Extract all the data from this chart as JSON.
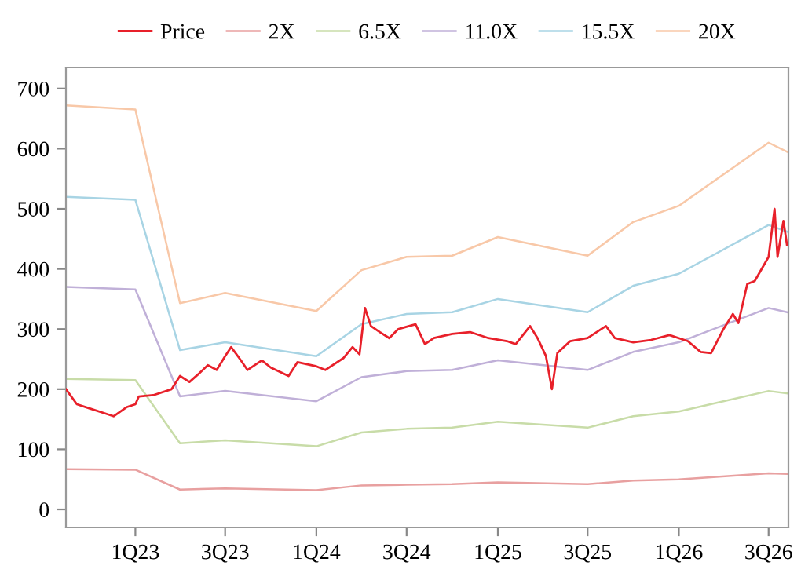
{
  "chart_data": {
    "type": "line",
    "legend": "top",
    "grid": false,
    "marker": "none",
    "line_style": "solid",
    "xlim": [
      "2022-08-14",
      "2026-08-10"
    ],
    "ylim": [
      -30,
      735
    ],
    "xticks": [
      {
        "value": "2023-01-01",
        "label": "1Q23"
      },
      {
        "value": "2023-07-01",
        "label": "3Q23"
      },
      {
        "value": "2024-01-01",
        "label": "1Q24"
      },
      {
        "value": "2024-07-01",
        "label": "3Q24"
      },
      {
        "value": "2025-01-01",
        "label": "1Q25"
      },
      {
        "value": "2025-07-01",
        "label": "3Q25"
      },
      {
        "value": "2026-01-01",
        "label": "1Q26"
      },
      {
        "value": "2026-07-01",
        "label": "3Q26"
      }
    ],
    "yticks": [
      0,
      100,
      200,
      300,
      400,
      500,
      600,
      700
    ],
    "series": [
      {
        "name": "Price",
        "color": "#e8202a",
        "x": [
          "2022-08-14",
          "2022-09-05",
          "2022-10-01",
          "2022-10-31",
          "2022-11-18",
          "2022-12-14",
          "2023-01-01",
          "2023-01-08",
          "2023-02-06",
          "2023-03-15",
          "2023-04-01",
          "2023-04-20",
          "2023-05-08",
          "2023-05-27",
          "2023-06-14",
          "2023-07-01",
          "2023-07-13",
          "2023-07-31",
          "2023-08-15",
          "2023-09-13",
          "2023-10-01",
          "2023-11-06",
          "2023-11-24",
          "2024-01-01",
          "2024-01-19",
          "2024-02-25",
          "2024-03-14",
          "2024-03-28",
          "2024-04-08",
          "2024-04-20",
          "2024-05-08",
          "2024-05-27",
          "2024-06-14",
          "2024-07-19",
          "2024-08-07",
          "2024-08-25",
          "2024-10-01",
          "2024-11-06",
          "2024-12-13",
          "2025-01-19",
          "2025-02-06",
          "2025-03-07",
          "2025-03-22",
          "2025-04-08",
          "2025-04-20",
          "2025-05-01",
          "2025-05-27",
          "2025-07-01",
          "2025-08-07",
          "2025-08-25",
          "2025-10-01",
          "2025-11-06",
          "2025-12-13",
          "2026-01-19",
          "2026-02-14",
          "2026-03-07",
          "2026-04-01",
          "2026-04-20",
          "2026-05-01",
          "2026-05-19",
          "2026-06-03",
          "2026-07-01",
          "2026-07-13",
          "2026-07-19",
          "2026-07-31",
          "2026-08-07"
        ],
        "values": [
          200,
          175,
          168,
          160,
          155,
          170,
          175,
          188,
          190,
          200,
          222,
          212,
          225,
          240,
          232,
          255,
          270,
          250,
          232,
          248,
          236,
          222,
          245,
          238,
          232,
          252,
          270,
          258,
          335,
          305,
          295,
          285,
          300,
          308,
          275,
          285,
          292,
          295,
          285,
          280,
          275,
          305,
          285,
          255,
          200,
          260,
          280,
          285,
          305,
          285,
          278,
          282,
          290,
          280,
          262,
          260,
          300,
          325,
          310,
          375,
          380,
          420,
          500,
          420,
          480,
          440
        ]
      },
      {
        "name": "2X",
        "color": "#e8a0a0",
        "x": [
          "2022-08-14",
          "2023-01-01",
          "2023-04-01",
          "2023-07-01",
          "2024-01-01",
          "2024-04-01",
          "2024-07-01",
          "2024-10-01",
          "2025-01-01",
          "2025-07-01",
          "2025-10-01",
          "2026-01-01",
          "2026-07-01",
          "2026-08-07"
        ],
        "values": [
          67,
          66,
          33,
          35,
          32,
          40,
          41,
          42,
          45,
          42,
          48,
          50,
          60,
          59
        ]
      },
      {
        "name": "6.5X",
        "color": "#c8dca8",
        "x": [
          "2022-08-14",
          "2023-01-01",
          "2023-04-01",
          "2023-07-01",
          "2024-01-01",
          "2024-04-01",
          "2024-07-01",
          "2024-10-01",
          "2025-01-01",
          "2025-07-01",
          "2025-10-01",
          "2026-01-01",
          "2026-07-01",
          "2026-08-07"
        ],
        "values": [
          217,
          215,
          110,
          115,
          105,
          128,
          134,
          136,
          146,
          136,
          155,
          163,
          197,
          193
        ]
      },
      {
        "name": "11.0X",
        "color": "#c0b0d8",
        "x": [
          "2022-08-14",
          "2023-01-01",
          "2023-04-01",
          "2023-07-01",
          "2024-01-01",
          "2024-04-01",
          "2024-07-01",
          "2024-10-01",
          "2025-01-01",
          "2025-07-01",
          "2025-10-01",
          "2026-01-01",
          "2026-07-01",
          "2026-08-07"
        ],
        "values": [
          370,
          366,
          188,
          197,
          180,
          220,
          230,
          232,
          248,
          232,
          262,
          278,
          335,
          328
        ]
      },
      {
        "name": "15.5X",
        "color": "#a8d4e4",
        "x": [
          "2022-08-14",
          "2023-01-01",
          "2023-04-01",
          "2023-07-01",
          "2024-01-01",
          "2024-04-01",
          "2024-07-01",
          "2024-10-01",
          "2025-01-01",
          "2025-07-01",
          "2025-10-01",
          "2026-01-01",
          "2026-07-01",
          "2026-08-07"
        ],
        "values": [
          520,
          515,
          265,
          278,
          255,
          308,
          325,
          328,
          350,
          328,
          372,
          392,
          473,
          462
        ]
      },
      {
        "name": "20X",
        "color": "#f8c8a8",
        "x": [
          "2022-08-14",
          "2023-01-01",
          "2023-04-01",
          "2023-07-01",
          "2024-01-01",
          "2024-04-01",
          "2024-07-01",
          "2024-10-01",
          "2025-01-01",
          "2025-07-01",
          "2025-10-01",
          "2026-01-01",
          "2026-07-01",
          "2026-08-07"
        ],
        "values": [
          672,
          665,
          343,
          360,
          330,
          398,
          420,
          422,
          453,
          422,
          478,
          505,
          610,
          595
        ]
      }
    ]
  }
}
